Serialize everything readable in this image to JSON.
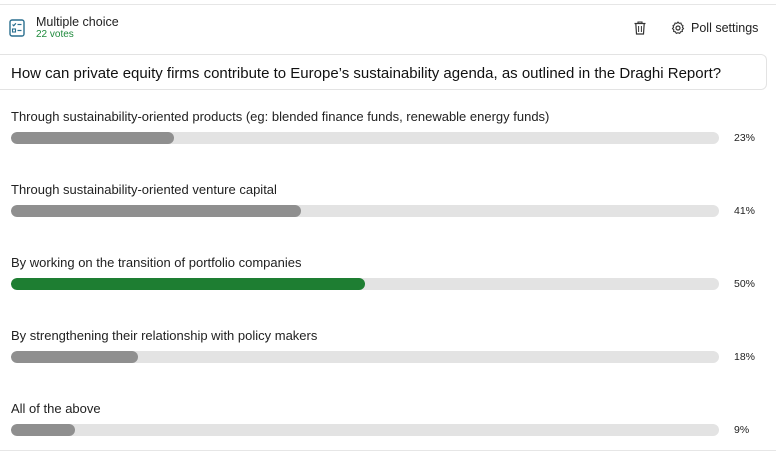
{
  "poll": {
    "type_label": "Multiple choice",
    "votes_label": "22 votes",
    "settings_label": "Poll settings",
    "question": "How can private equity firms contribute to Europe’s sustainability agenda, as outlined in the Draghi Report?",
    "accent_color": "#1e7e32",
    "bar_color": "#8f8f8f",
    "options": [
      {
        "label": "Through sustainability-oriented products (eg: blended finance funds, renewable energy funds)",
        "percent_label": "23%",
        "percent": 23,
        "leading": false
      },
      {
        "label": "Through sustainability-oriented venture capital",
        "percent_label": "41%",
        "percent": 41,
        "leading": false
      },
      {
        "label": "By working on the transition of portfolio companies",
        "percent_label": "50%",
        "percent": 50,
        "leading": true
      },
      {
        "label": "By strengthening their relationship with policy makers",
        "percent_label": "18%",
        "percent": 18,
        "leading": false
      },
      {
        "label": "All of the above",
        "percent_label": "9%",
        "percent": 9,
        "leading": false
      }
    ]
  },
  "icons": {
    "type": "checklist-icon",
    "delete": "trash-icon",
    "settings": "gear-icon"
  }
}
